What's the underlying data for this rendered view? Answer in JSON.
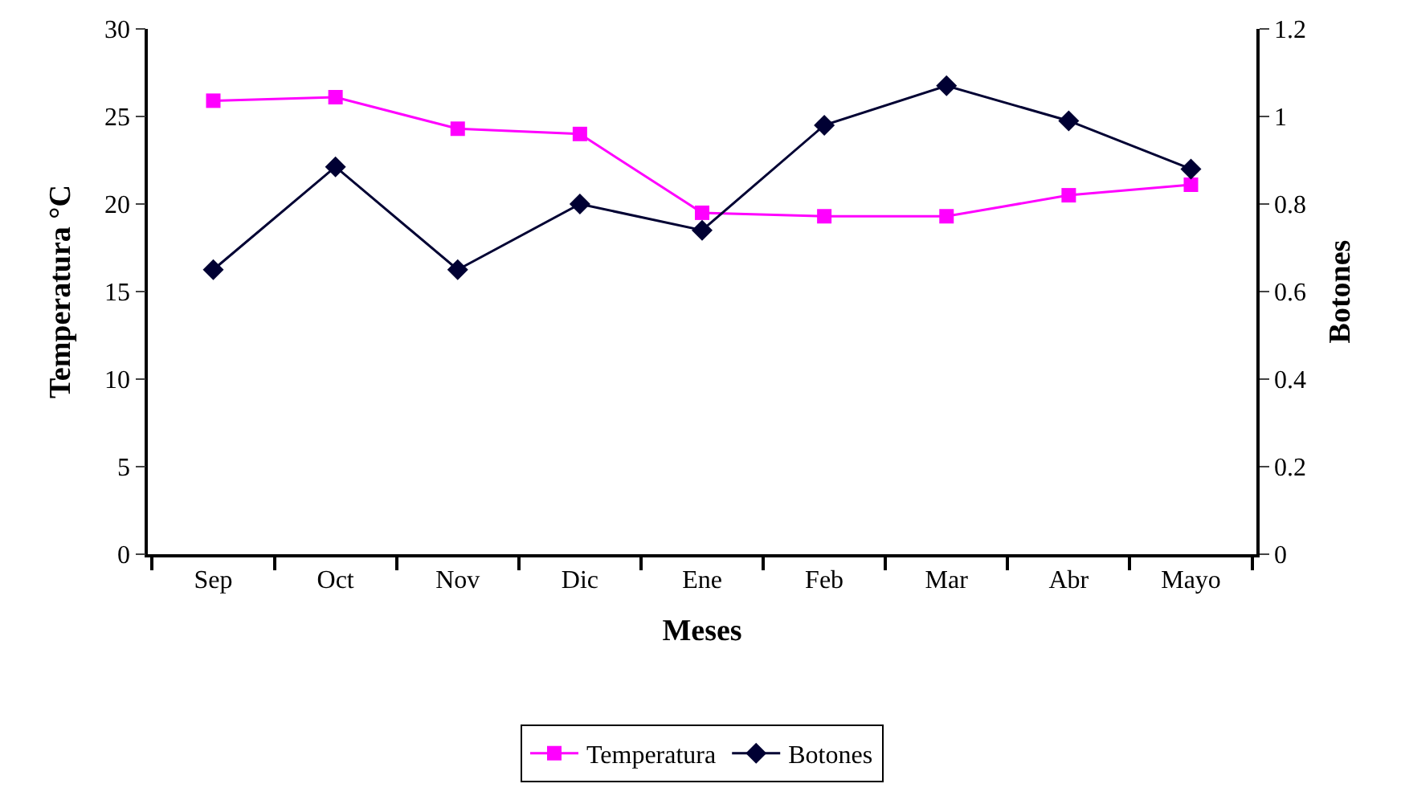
{
  "chart_data": {
    "type": "line",
    "xlabel": "Meses",
    "ylabel": "Temperatura °C",
    "y2label": "Botones",
    "categories": [
      "Sep",
      "Oct",
      "Nov",
      "Dic",
      "Ene",
      "Feb",
      "Mar",
      "Abr",
      "Mayo"
    ],
    "series": [
      {
        "name": "Temperatura",
        "color": "#ff00ff",
        "marker": "square",
        "values": [
          25.9,
          26.1,
          24.3,
          24,
          19.5,
          19.3,
          19.3,
          20.5,
          21.1
        ]
      },
      {
        "name": "Botones",
        "color": "#000033",
        "marker": "diamond",
        "axis": "y2",
        "values": [
          0.65,
          0.885,
          0.65,
          0.8,
          0.74,
          0.98,
          1.07,
          0.99,
          0.88
        ]
      }
    ],
    "ylim": [
      0,
      30
    ],
    "yticks": [
      0,
      5,
      10,
      15,
      20,
      25,
      30
    ],
    "y2lim": [
      0,
      1.2
    ],
    "y2ticks": [
      0,
      0.2,
      0.4,
      0.6,
      0.8,
      1,
      1.2
    ],
    "grid": false,
    "legend": "bottom",
    "line_style": "solid"
  }
}
